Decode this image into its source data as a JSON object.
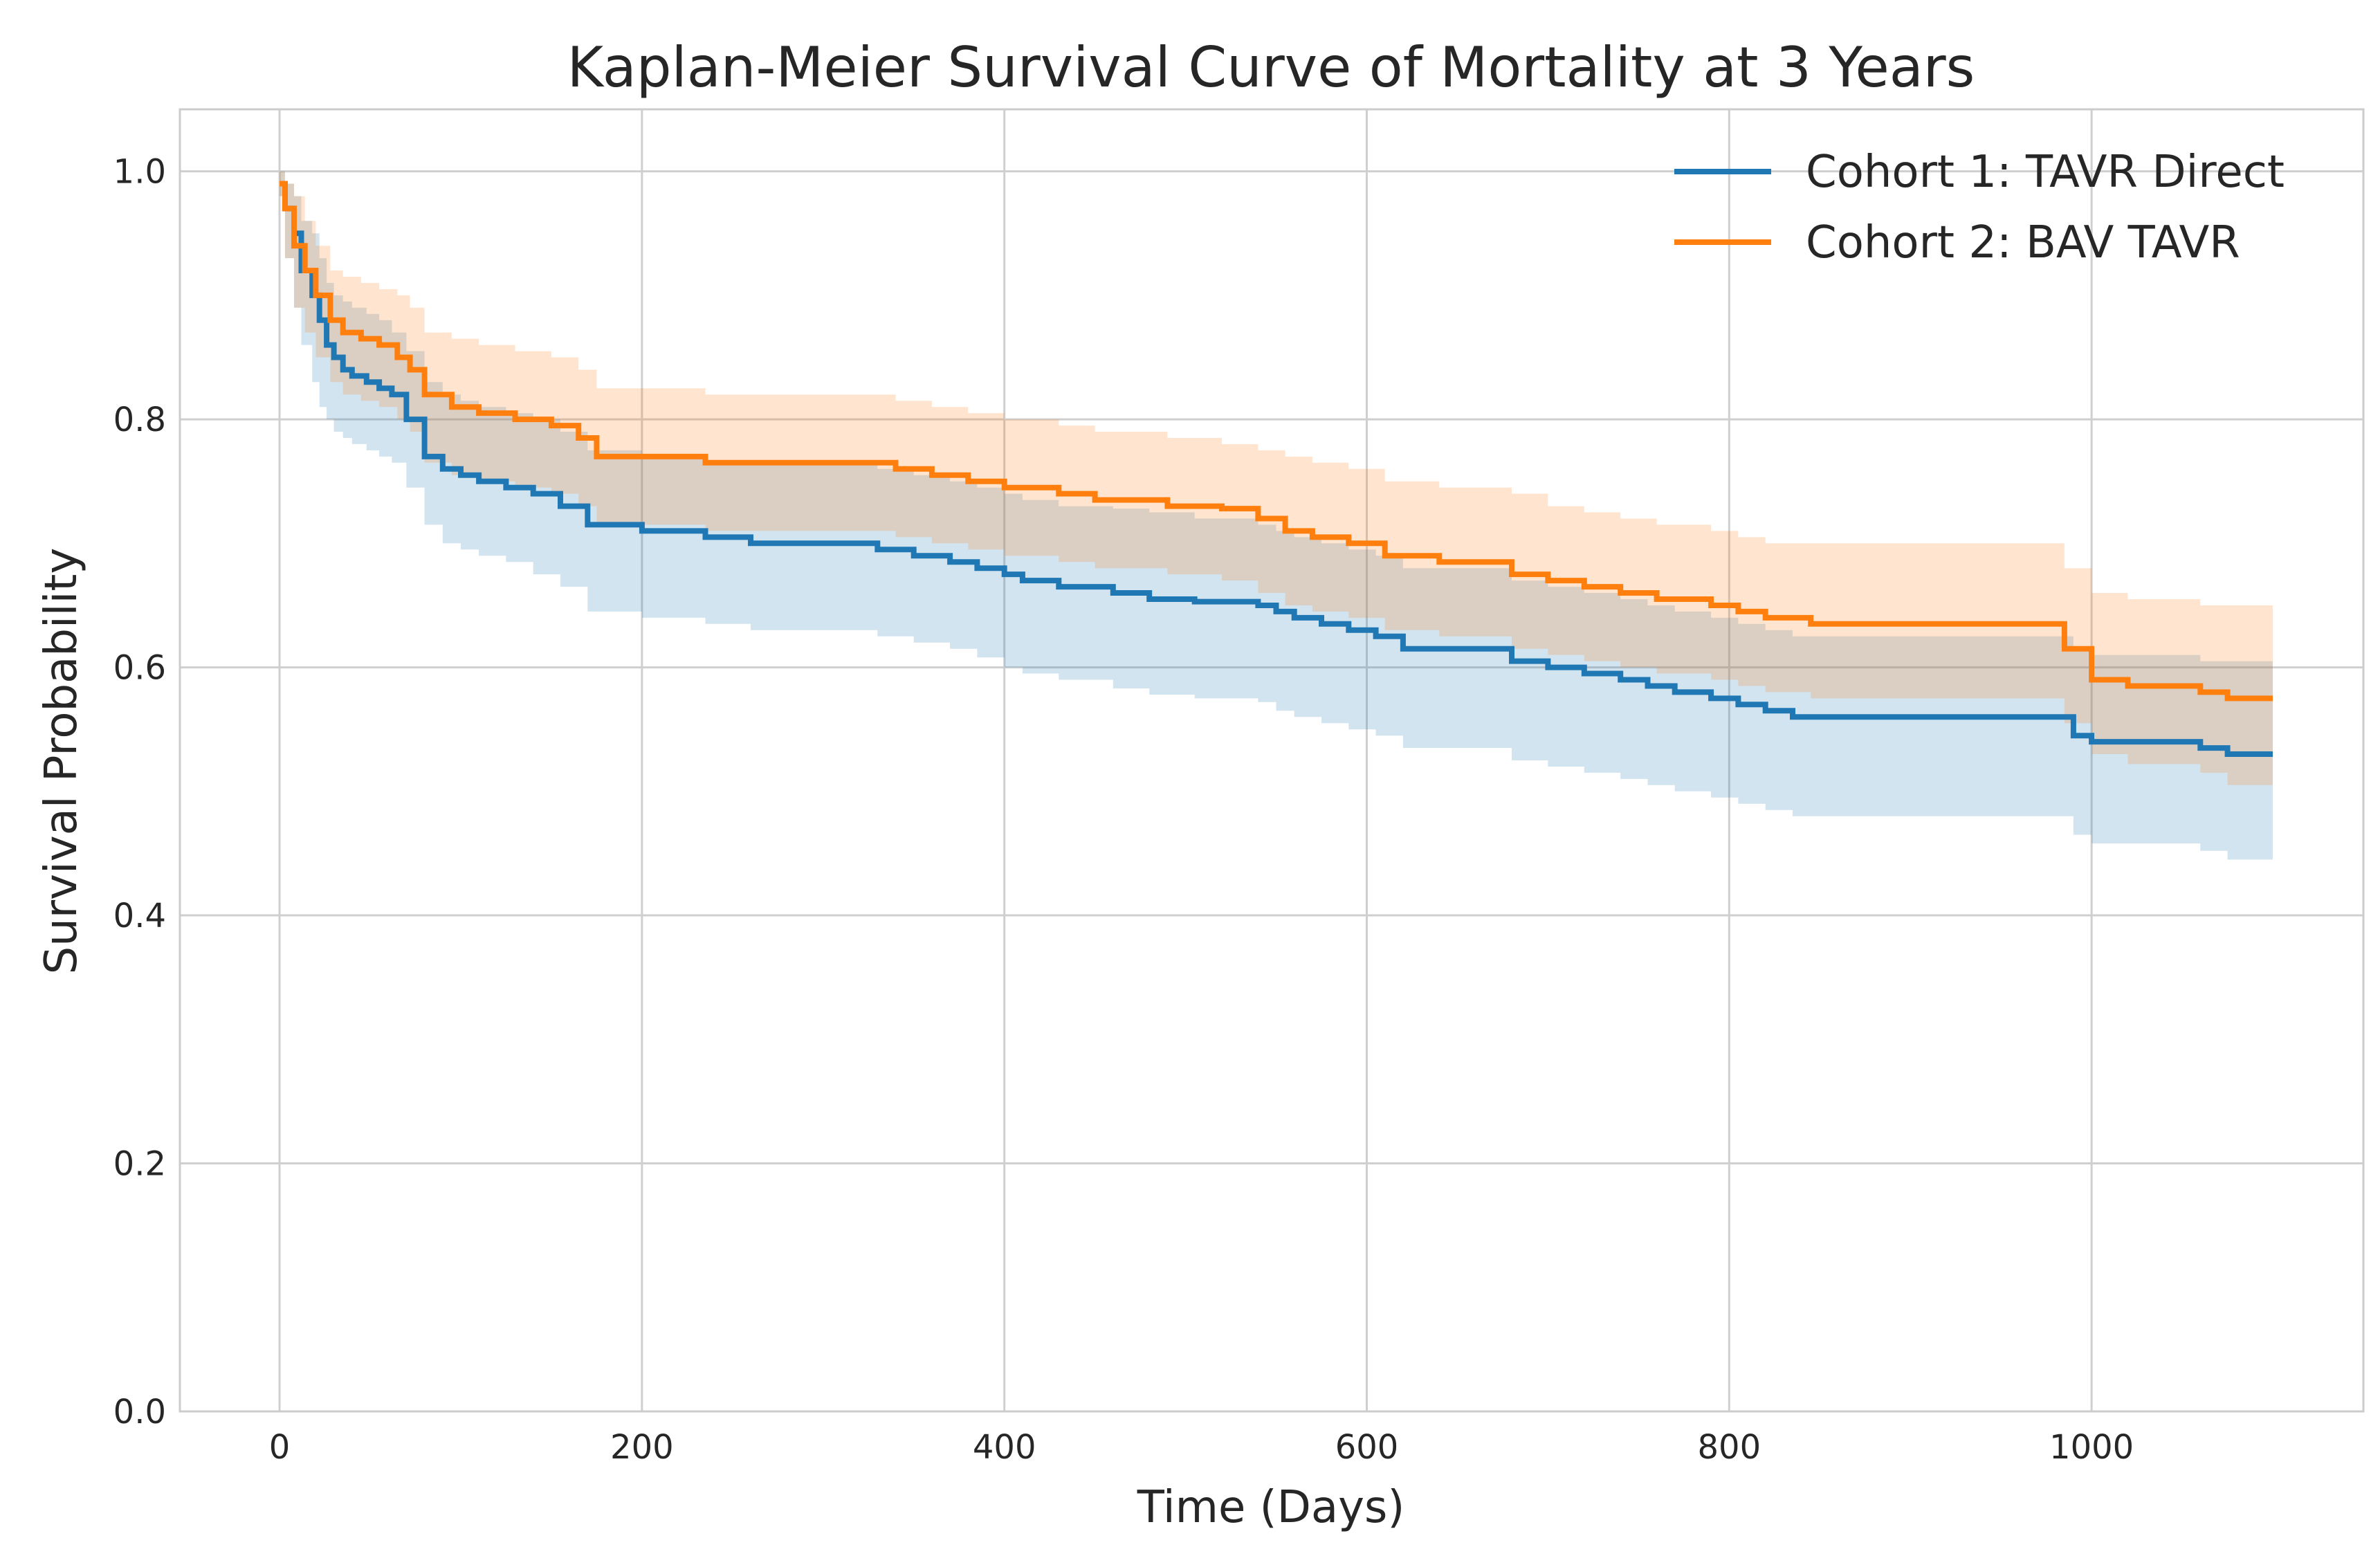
{
  "chart_data": {
    "type": "line",
    "title": "Kaplan-Meier Survival Curve of Mortality at 3 Years",
    "xlabel": "Time (Days)",
    "ylabel": "Survival Probability",
    "xlim": [
      -55,
      1150
    ],
    "ylim": [
      0,
      1.05
    ],
    "xticks": [
      0,
      200,
      400,
      600,
      800,
      1000
    ],
    "xtick_labels": [
      "0",
      "200",
      "400",
      "600",
      "800",
      "1000"
    ],
    "yticks": [
      0.0,
      0.2,
      0.4,
      0.6,
      0.8,
      1.0
    ],
    "ytick_labels": [
      "0.0",
      "0.2",
      "0.4",
      "0.6",
      "0.8",
      "1.0"
    ],
    "grid": true,
    "legend_position": "top-right",
    "series": [
      {
        "name": "Cohort 1: TAVR Direct",
        "color": "#1f77b4",
        "step": true,
        "x": [
          0,
          3,
          8,
          12,
          18,
          22,
          26,
          30,
          35,
          40,
          48,
          55,
          62,
          70,
          80,
          90,
          100,
          110,
          125,
          140,
          155,
          170,
          200,
          235,
          260,
          330,
          350,
          370,
          385,
          400,
          410,
          430,
          460,
          480,
          505,
          540,
          550,
          560,
          575,
          590,
          605,
          620,
          680,
          700,
          720,
          740,
          755,
          770,
          790,
          805,
          820,
          835,
          845,
          990,
          1000,
          1060,
          1075,
          1100
        ],
        "y": [
          0.99,
          0.97,
          0.95,
          0.92,
          0.9,
          0.88,
          0.86,
          0.85,
          0.84,
          0.835,
          0.83,
          0.825,
          0.82,
          0.8,
          0.77,
          0.76,
          0.755,
          0.75,
          0.745,
          0.74,
          0.73,
          0.715,
          0.71,
          0.705,
          0.7,
          0.695,
          0.69,
          0.685,
          0.68,
          0.675,
          0.67,
          0.665,
          0.66,
          0.655,
          0.653,
          0.65,
          0.645,
          0.64,
          0.635,
          0.63,
          0.625,
          0.615,
          0.605,
          0.6,
          0.595,
          0.59,
          0.585,
          0.58,
          0.575,
          0.57,
          0.565,
          0.56,
          0.56,
          0.545,
          0.54,
          0.535,
          0.53,
          0.53
        ],
        "ci_lower": [
          0.98,
          0.93,
          0.89,
          0.86,
          0.83,
          0.81,
          0.8,
          0.79,
          0.785,
          0.78,
          0.775,
          0.77,
          0.765,
          0.745,
          0.715,
          0.7,
          0.695,
          0.69,
          0.685,
          0.675,
          0.665,
          0.645,
          0.64,
          0.635,
          0.63,
          0.625,
          0.62,
          0.615,
          0.608,
          0.6,
          0.595,
          0.59,
          0.583,
          0.578,
          0.575,
          0.572,
          0.565,
          0.56,
          0.555,
          0.55,
          0.545,
          0.535,
          0.525,
          0.52,
          0.515,
          0.51,
          0.505,
          0.5,
          0.495,
          0.49,
          0.485,
          0.48,
          0.48,
          0.465,
          0.458,
          0.452,
          0.445,
          0.445
        ],
        "ci_upper": [
          1.0,
          0.99,
          0.98,
          0.96,
          0.95,
          0.93,
          0.91,
          0.9,
          0.895,
          0.89,
          0.885,
          0.88,
          0.87,
          0.855,
          0.83,
          0.82,
          0.815,
          0.81,
          0.805,
          0.8,
          0.79,
          0.775,
          0.77,
          0.765,
          0.765,
          0.76,
          0.755,
          0.75,
          0.745,
          0.74,
          0.735,
          0.73,
          0.728,
          0.725,
          0.72,
          0.715,
          0.71,
          0.705,
          0.7,
          0.695,
          0.69,
          0.68,
          0.67,
          0.665,
          0.66,
          0.655,
          0.65,
          0.645,
          0.64,
          0.635,
          0.63,
          0.625,
          0.625,
          0.615,
          0.61,
          0.605,
          0.605,
          0.605
        ]
      },
      {
        "name": "Cohort 2: BAV TAVR",
        "color": "#ff7f0e",
        "step": true,
        "x": [
          0,
          3,
          8,
          14,
          20,
          28,
          35,
          45,
          55,
          65,
          72,
          80,
          95,
          110,
          130,
          150,
          165,
          175,
          200,
          235,
          260,
          300,
          340,
          360,
          380,
          400,
          430,
          450,
          490,
          520,
          540,
          555,
          570,
          590,
          610,
          640,
          680,
          700,
          720,
          740,
          760,
          790,
          805,
          820,
          835,
          845,
          900,
          985,
          1000,
          1020,
          1060,
          1075,
          1100
        ],
        "y": [
          0.99,
          0.97,
          0.94,
          0.92,
          0.9,
          0.88,
          0.87,
          0.865,
          0.86,
          0.85,
          0.84,
          0.82,
          0.81,
          0.805,
          0.8,
          0.795,
          0.785,
          0.77,
          0.77,
          0.765,
          0.765,
          0.765,
          0.76,
          0.755,
          0.75,
          0.745,
          0.74,
          0.735,
          0.73,
          0.728,
          0.72,
          0.71,
          0.705,
          0.7,
          0.69,
          0.685,
          0.675,
          0.67,
          0.665,
          0.66,
          0.655,
          0.65,
          0.645,
          0.64,
          0.64,
          0.635,
          0.635,
          0.615,
          0.59,
          0.585,
          0.58,
          0.575,
          0.575
        ],
        "ci_lower": [
          0.98,
          0.93,
          0.89,
          0.87,
          0.85,
          0.83,
          0.82,
          0.815,
          0.81,
          0.8,
          0.79,
          0.765,
          0.755,
          0.75,
          0.745,
          0.74,
          0.73,
          0.715,
          0.715,
          0.71,
          0.71,
          0.71,
          0.705,
          0.7,
          0.695,
          0.69,
          0.685,
          0.68,
          0.675,
          0.67,
          0.66,
          0.65,
          0.645,
          0.64,
          0.63,
          0.625,
          0.615,
          0.61,
          0.605,
          0.6,
          0.595,
          0.59,
          0.585,
          0.58,
          0.58,
          0.575,
          0.575,
          0.555,
          0.53,
          0.522,
          0.515,
          0.505,
          0.505
        ],
        "ci_upper": [
          1.0,
          0.99,
          0.98,
          0.96,
          0.94,
          0.92,
          0.915,
          0.91,
          0.905,
          0.9,
          0.89,
          0.87,
          0.865,
          0.86,
          0.855,
          0.85,
          0.84,
          0.825,
          0.825,
          0.82,
          0.82,
          0.82,
          0.815,
          0.81,
          0.805,
          0.8,
          0.795,
          0.79,
          0.785,
          0.78,
          0.775,
          0.77,
          0.765,
          0.76,
          0.75,
          0.745,
          0.74,
          0.73,
          0.725,
          0.72,
          0.715,
          0.71,
          0.705,
          0.7,
          0.7,
          0.7,
          0.7,
          0.68,
          0.66,
          0.655,
          0.65,
          0.65,
          0.65
        ]
      }
    ]
  }
}
